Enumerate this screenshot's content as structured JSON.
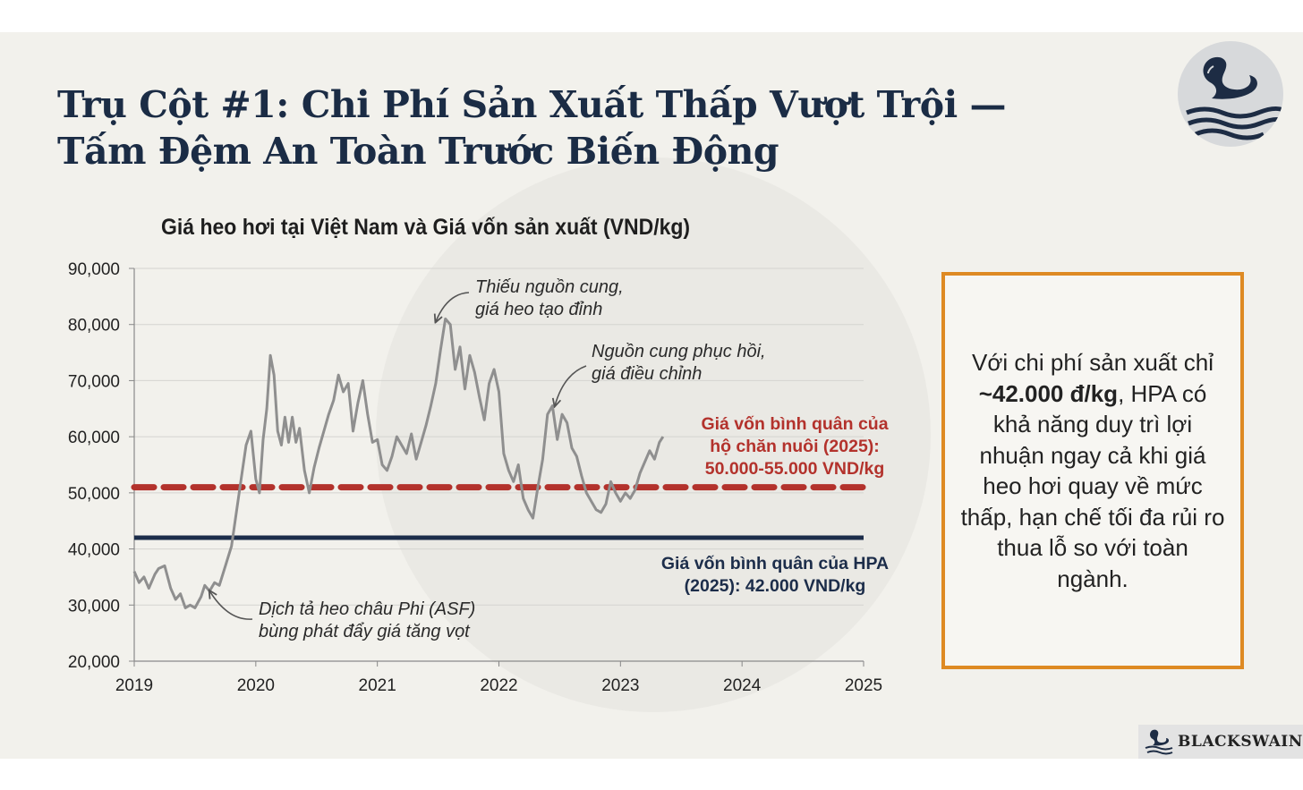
{
  "slide": {
    "title_line1": "Trụ Cột #1: Chi Phí Sản Xuất Thấp Vượt Trội —",
    "title_line2": "Tấm Đệm An Toàn Trước Biến Động",
    "brand_name": "BLACKSWAIN",
    "note": {
      "before": "Với chi phí sản xuất chỉ ",
      "bold": "~42.000 đ/kg",
      "after": ", HPA có khả năng duy trì lợi nhuận ngay cả khi giá heo hơi quay về mức thấp, hạn chế tối đa rủi ro thua lỗ so với toàn ngành."
    }
  },
  "chart_data": {
    "type": "line",
    "title": "Giá heo hơi tại Việt Nam và Giá vốn sản xuất (VND/kg)",
    "xlim": [
      2019,
      2025
    ],
    "ylim": [
      20000,
      90000
    ],
    "xticks": [
      "2019",
      "2020",
      "2021",
      "2022",
      "2023",
      "2024",
      "2025"
    ],
    "yticks": [
      "20,000",
      "30,000",
      "40,000",
      "50,000",
      "60,000",
      "70,000",
      "80,000",
      "90,000"
    ],
    "grid": "horizontal",
    "series": [
      {
        "color": "#8f8f8f",
        "x": [
          2019.0,
          2019.04,
          2019.08,
          2019.12,
          2019.17,
          2019.2,
          2019.25,
          2019.3,
          2019.34,
          2019.38,
          2019.42,
          2019.46,
          2019.5,
          2019.55,
          2019.58,
          2019.62,
          2019.66,
          2019.7,
          2019.75,
          2019.8,
          2019.84,
          2019.88,
          2019.92,
          2019.96,
          2020.0,
          2020.03,
          2020.06,
          2020.09,
          2020.12,
          2020.15,
          2020.18,
          2020.21,
          2020.24,
          2020.27,
          2020.3,
          2020.33,
          2020.36,
          2020.4,
          2020.44,
          2020.48,
          2020.52,
          2020.56,
          2020.6,
          2020.64,
          2020.68,
          2020.72,
          2020.76,
          2020.8,
          2020.84,
          2020.88,
          2020.92,
          2020.96,
          2021.0,
          2021.04,
          2021.08,
          2021.12,
          2021.16,
          2021.2,
          2021.24,
          2021.28,
          2021.32,
          2021.36,
          2021.4,
          2021.44,
          2021.48,
          2021.52,
          2021.56,
          2021.6,
          2021.64,
          2021.68,
          2021.72,
          2021.76,
          2021.8,
          2021.84,
          2021.88,
          2021.92,
          2021.96,
          2022.0,
          2022.04,
          2022.08,
          2022.12,
          2022.16,
          2022.2,
          2022.24,
          2022.28,
          2022.32,
          2022.36,
          2022.4,
          2022.44,
          2022.48,
          2022.52,
          2022.56,
          2022.6,
          2022.64,
          2022.68,
          2022.72,
          2022.76,
          2022.8,
          2022.84,
          2022.88,
          2022.92,
          2022.96,
          2023.0,
          2023.04,
          2023.08,
          2023.12,
          2023.16,
          2023.2,
          2023.24,
          2023.28,
          2023.32,
          2023.35
        ],
        "y": [
          36000,
          34000,
          35000,
          33000,
          35500,
          36500,
          37000,
          33000,
          31000,
          32000,
          29500,
          30000,
          29500,
          31500,
          33500,
          32500,
          34000,
          33500,
          37000,
          40500,
          46500,
          52500,
          58500,
          61000,
          52500,
          50000,
          59500,
          65000,
          74500,
          71000,
          61000,
          58500,
          63500,
          59000,
          63500,
          59000,
          61500,
          54000,
          50000,
          54500,
          58000,
          61000,
          64000,
          66500,
          71000,
          68000,
          69500,
          61000,
          66000,
          70000,
          64000,
          59000,
          59500,
          55000,
          54000,
          56500,
          60000,
          58500,
          57000,
          60500,
          56000,
          59000,
          62000,
          65500,
          69500,
          75500,
          81000,
          80000,
          72000,
          76000,
          68500,
          74500,
          71500,
          67000,
          63000,
          69500,
          72000,
          68000,
          57000,
          54000,
          52000,
          55000,
          49000,
          47000,
          45500,
          51000,
          56000,
          64000,
          65500,
          59500,
          64000,
          62500,
          58000,
          56500,
          53000,
          50000,
          48500,
          47000,
          46500,
          48000,
          52000,
          50000,
          48500,
          50000,
          49000,
          50500,
          53500,
          55500,
          57500,
          56000,
          59000,
          60000
        ]
      }
    ],
    "ref_lines": [
      {
        "label": "Giá vốn bình quân của hộ chăn nuôi (2025): 50.000-55.000 VND/kg",
        "label_lines": [
          "Giá vốn bình quân của",
          "hộ chăn nuôi (2025):",
          "50.000-55.000 VND/kg"
        ],
        "y": 51000,
        "style": "dashed",
        "color": "#b3322c"
      },
      {
        "label": "Giá vốn bình quân của HPA (2025): 42.000 VND/kg",
        "label_lines": [
          "Giá vốn bình quân của HPA",
          "(2025): 42.000 VND/kg"
        ],
        "y": 42000,
        "style": "solid",
        "color": "#1c2d4a"
      }
    ],
    "annotations": [
      {
        "lines": [
          "Thiếu nguồn cung,",
          "giá heo tạo đỉnh"
        ],
        "target_x": 2021.48,
        "target_y": 80500
      },
      {
        "lines": [
          "Nguồn cung phục hồi,",
          "giá điều chỉnh"
        ],
        "target_x": 2022.46,
        "target_y": 65500
      },
      {
        "lines": [
          "Dịch tả heo châu Phi (ASF)",
          "bùng phát đẩy giá tăng vọt"
        ],
        "target_x": 2019.62,
        "target_y": 32500
      }
    ]
  }
}
